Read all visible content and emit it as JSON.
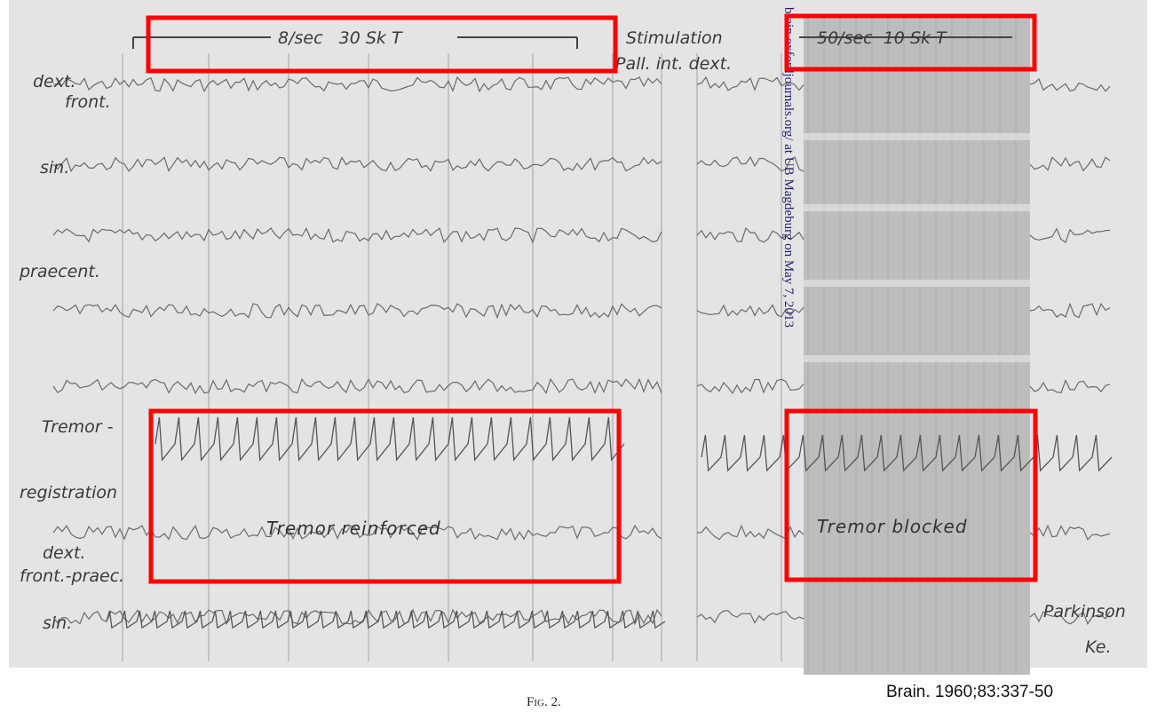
{
  "figure": {
    "top_left_marker": "8/sec   30 Sk T",
    "stimulation": "Stimulation",
    "site": "Pall. int. dext.",
    "top_right_marker": "50/sec  10 Sk T",
    "labels": [
      "dext.",
      "front.",
      "sin.",
      "praecent.",
      "Tremor -",
      "registration",
      "dext.",
      "front.-praec.",
      "sin."
    ],
    "annotations": [
      "Tremor reinforced",
      "Tremor blocked"
    ],
    "patient": [
      "Parkinson",
      "Ke."
    ],
    "watermark": "brain.oxfordjournals.org/ at UB Magdeburg on May 7, 2013",
    "caption": "Fig. 2.",
    "citation": "Brain. 1960;83:337-50"
  }
}
